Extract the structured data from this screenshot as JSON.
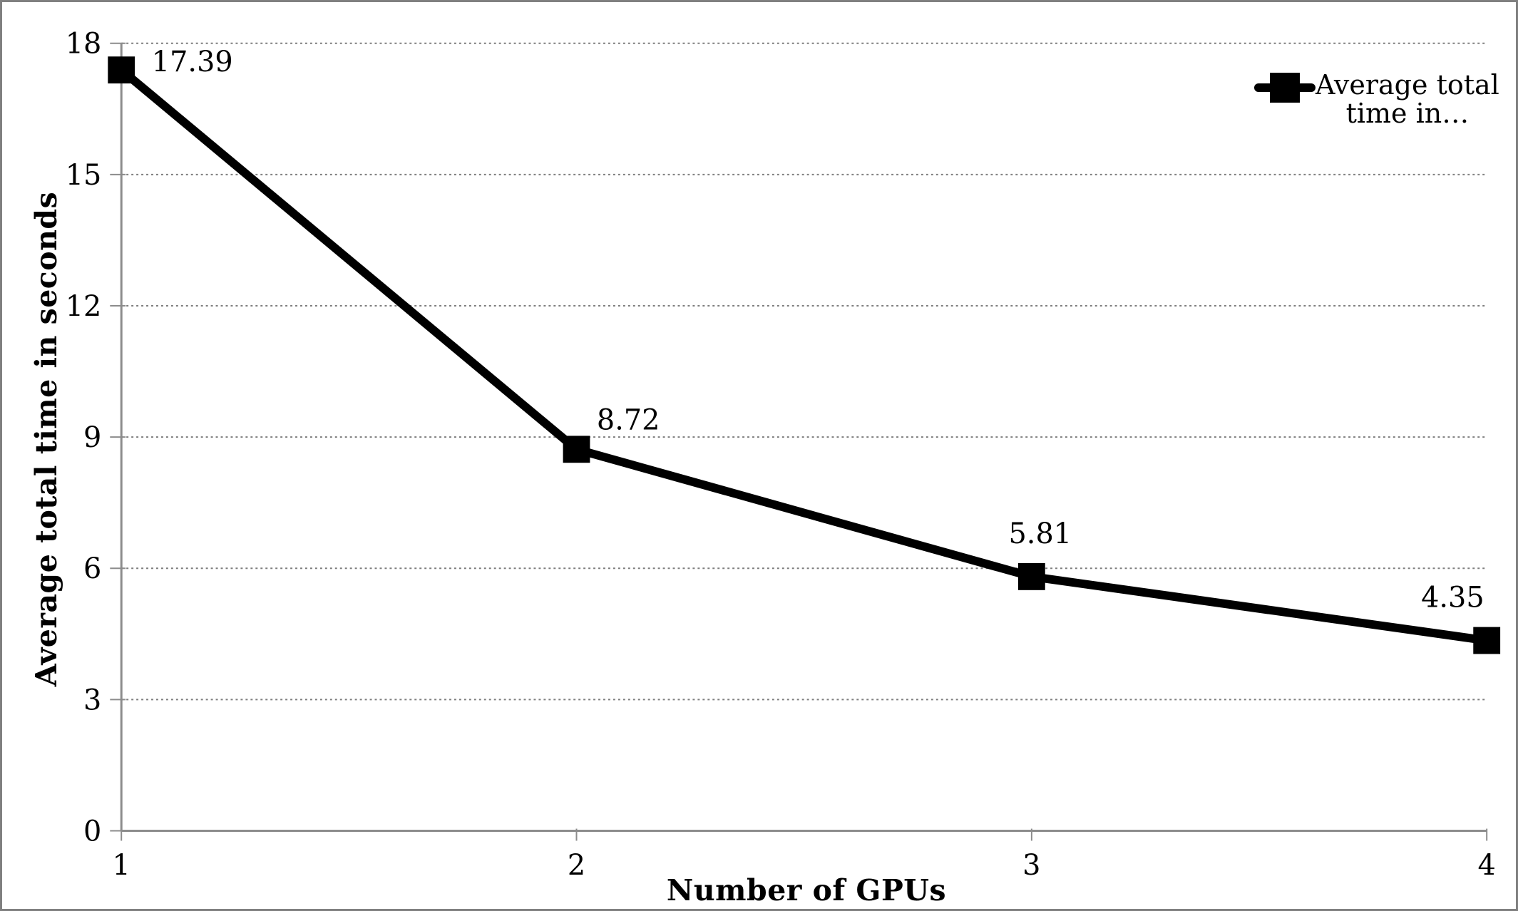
{
  "chart_data": {
    "type": "line",
    "x": [
      1,
      2,
      3,
      4
    ],
    "series": [
      {
        "name": "Average total time in…",
        "values": [
          17.39,
          8.72,
          5.81,
          4.35
        ],
        "point_labels": [
          "17.39",
          "8.72",
          "5.81",
          "4.35"
        ],
        "marker": "square",
        "color": "#000000"
      }
    ],
    "title": "",
    "xlabel": "Number of GPUs",
    "ylabel": "Average total time in seconds",
    "xlim": [
      1,
      4
    ],
    "ylim": [
      0,
      18
    ],
    "xtick_labels": [
      "1",
      "2",
      "3",
      "4"
    ],
    "ytick_values": [
      0,
      3,
      6,
      9,
      12,
      15,
      18
    ],
    "ytick_labels": [
      "0",
      "3",
      "6",
      "9",
      "12",
      "15",
      "18"
    ],
    "grid": "horizontal-dotted",
    "legend_position": "top-right"
  },
  "legend": {
    "label": "Average total time in…",
    "lines": [
      "Average total",
      "time in…"
    ]
  },
  "colors": {
    "series": "#000000",
    "axis": "#8c8c8c",
    "grid": "#7f7f7f",
    "text": "#000000",
    "frame": "#808080"
  }
}
